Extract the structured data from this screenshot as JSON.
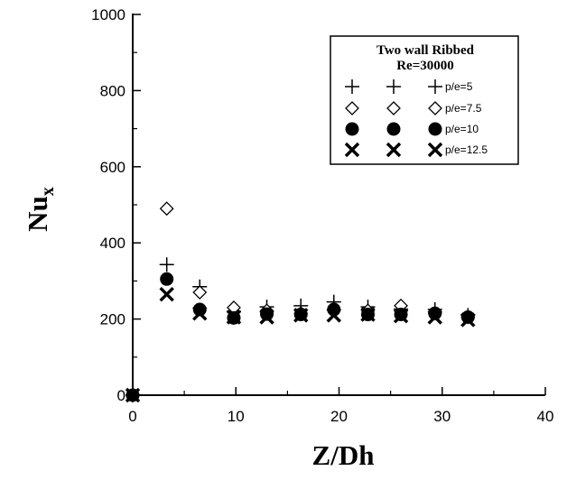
{
  "chart_data": {
    "type": "scatter",
    "xlabel": "Z/Dh",
    "ylabel_main": "Nu",
    "ylabel_sub": "x",
    "xlim": [
      0,
      40
    ],
    "ylim": [
      0,
      1000
    ],
    "xticks": [
      "0",
      "10",
      "20",
      "30",
      "40"
    ],
    "yticks": [
      "0",
      "200",
      "400",
      "600",
      "800",
      "1000"
    ],
    "legend": {
      "title_line1": "Two wall Ribbed",
      "title_line2": "Re=30000",
      "placement": "top-right"
    },
    "series": [
      {
        "name": "p/e=5",
        "marker": "plus",
        "points": [
          [
            0,
            0
          ],
          [
            3.3,
            343
          ],
          [
            6.5,
            285
          ],
          [
            9.8,
            220
          ],
          [
            13,
            232
          ],
          [
            16.3,
            235
          ],
          [
            19.5,
            245
          ],
          [
            22.8,
            232
          ],
          [
            26,
            226
          ],
          [
            29.3,
            225
          ],
          [
            32.5,
            210
          ]
        ]
      },
      {
        "name": "p/e=7.5",
        "marker": "diamond",
        "points": [
          [
            0,
            0
          ],
          [
            3.3,
            490
          ],
          [
            6.5,
            270
          ],
          [
            9.8,
            230
          ],
          [
            13,
            222
          ],
          [
            16.3,
            215
          ],
          [
            19.5,
            225
          ],
          [
            22.8,
            222
          ],
          [
            26,
            235
          ],
          [
            29.3,
            215
          ],
          [
            32.5,
            205
          ]
        ]
      },
      {
        "name": "p/e=10",
        "marker": "circle",
        "points": [
          [
            0,
            0
          ],
          [
            3.3,
            305
          ],
          [
            6.5,
            225
          ],
          [
            9.8,
            203
          ],
          [
            13,
            213
          ],
          [
            16.3,
            212
          ],
          [
            19.5,
            225
          ],
          [
            22.8,
            212
          ],
          [
            26,
            212
          ],
          [
            29.3,
            215
          ],
          [
            32.5,
            205
          ]
        ]
      },
      {
        "name": "p/e=12.5",
        "marker": "x",
        "points": [
          [
            0,
            0
          ],
          [
            3.3,
            265
          ],
          [
            6.5,
            215
          ],
          [
            9.8,
            205
          ],
          [
            13,
            205
          ],
          [
            16.3,
            210
          ],
          [
            19.5,
            210
          ],
          [
            22.8,
            212
          ],
          [
            26,
            208
          ],
          [
            29.3,
            205
          ],
          [
            32.5,
            198
          ]
        ]
      }
    ]
  }
}
